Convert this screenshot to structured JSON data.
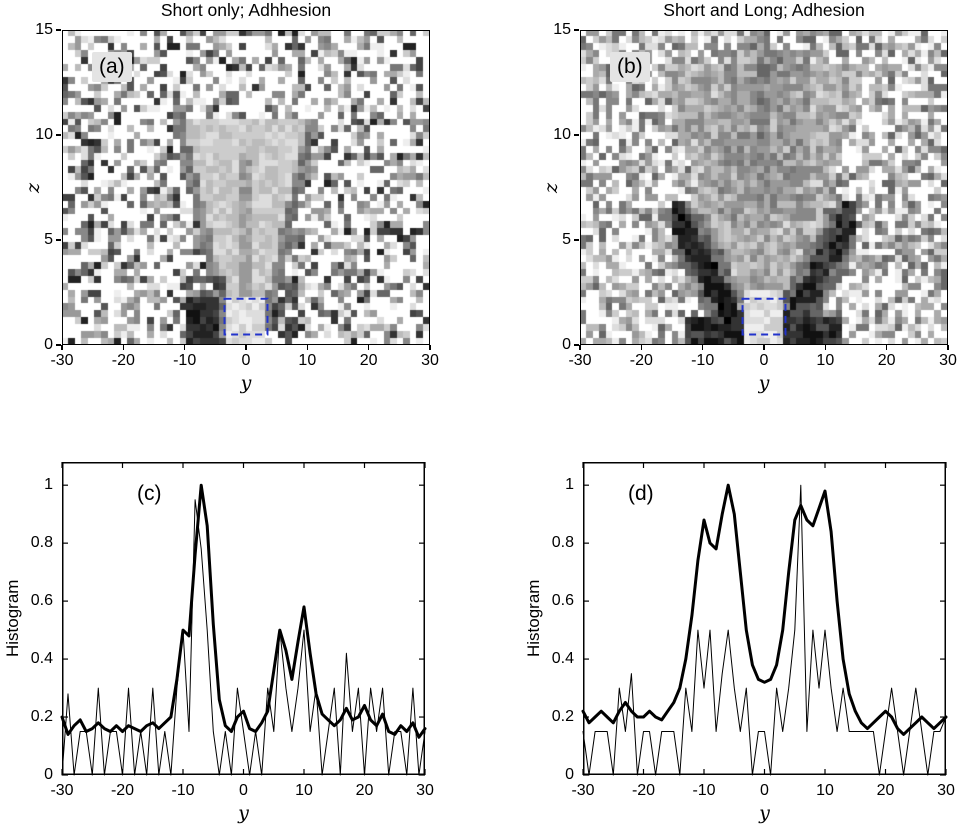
{
  "figure": {
    "background": "#ffffff"
  },
  "colors": {
    "roi_box": "#2233cc",
    "line": "#000000",
    "tag_bg": "#e4e4e4"
  },
  "chart_data": [
    {
      "type": "heatmap",
      "panel_label": "(a)",
      "title": "Short only; Adhhesion",
      "xlabel": "y",
      "ylabel": "z",
      "xlim": [
        -30,
        30
      ],
      "ylim": [
        0,
        15
      ],
      "xticks": [
        -30,
        -20,
        -10,
        0,
        10,
        20,
        30
      ],
      "yticks": [
        0,
        5,
        10,
        15
      ],
      "roi_box": {
        "x": [
          -3.5,
          3.5
        ],
        "z": [
          0.5,
          2.2
        ],
        "style": "dashed",
        "color": "#2233cc"
      },
      "description": "Noisy grayscale density map: light funnel-shaped plume rising from bottom center, very dark patches near y=-9..-4 and y=5..8 at low z, speckled white/gray background",
      "seed": 101
    },
    {
      "type": "heatmap",
      "panel_label": "(b)",
      "title": "Short and Long; Adhesion",
      "xlabel": "y",
      "ylabel": "z",
      "xlim": [
        -30,
        30
      ],
      "ylim": [
        0,
        15
      ],
      "xticks": [
        -30,
        -20,
        -10,
        0,
        10,
        20,
        30
      ],
      "yticks": [
        0,
        5,
        10,
        15
      ],
      "roi_box": {
        "x": [
          -3.5,
          3.5
        ],
        "z": [
          0.5,
          2.2
        ],
        "style": "dashed",
        "color": "#2233cc"
      },
      "description": "Noisy grayscale density map: broad gray cone with bright bottom center, strong dark chevron wings at |y|=4..14 for z<5, faint dark central streak above z=6, speckled background",
      "seed": 202
    },
    {
      "type": "line",
      "panel_label": "(c)",
      "title": "",
      "xlabel": "y",
      "ylabel": "Histogram",
      "xlim": [
        -30,
        30
      ],
      "ylim": [
        0,
        1.08
      ],
      "xticks": [
        -30,
        -20,
        -10,
        0,
        10,
        20,
        30
      ],
      "yticks": [
        0,
        0.2,
        0.4,
        0.6,
        0.8,
        1
      ],
      "x_start": -30,
      "x_step": 1,
      "series": [
        {
          "name": "raw-histogram",
          "stroke_width": 1,
          "values": [
            0.0,
            0.28,
            0.0,
            0.15,
            0.15,
            0.0,
            0.3,
            0.0,
            0.15,
            0.15,
            0.0,
            0.3,
            0.0,
            0.15,
            0.0,
            0.3,
            0.0,
            0.15,
            0.0,
            0.3,
            0.5,
            0.15,
            0.95,
            0.78,
            0.5,
            0.15,
            0.0,
            0.15,
            0.0,
            0.3,
            0.15,
            0.0,
            0.15,
            0.0,
            0.3,
            0.15,
            0.5,
            0.3,
            0.15,
            0.3,
            0.5,
            0.15,
            0.3,
            0.0,
            0.15,
            0.3,
            0.0,
            0.42,
            0.15,
            0.3,
            0.0,
            0.3,
            0.15,
            0.3,
            0.0,
            0.15,
            0.15,
            0.0,
            0.3,
            0.0,
            0.15
          ]
        },
        {
          "name": "smoothed-histogram",
          "stroke_width": 3,
          "values": [
            0.2,
            0.14,
            0.17,
            0.19,
            0.15,
            0.16,
            0.18,
            0.16,
            0.15,
            0.17,
            0.15,
            0.17,
            0.16,
            0.15,
            0.17,
            0.18,
            0.16,
            0.18,
            0.2,
            0.33,
            0.5,
            0.48,
            0.76,
            1.0,
            0.86,
            0.52,
            0.26,
            0.17,
            0.15,
            0.2,
            0.22,
            0.16,
            0.15,
            0.18,
            0.22,
            0.36,
            0.5,
            0.43,
            0.33,
            0.46,
            0.58,
            0.42,
            0.28,
            0.21,
            0.19,
            0.17,
            0.19,
            0.23,
            0.19,
            0.2,
            0.24,
            0.19,
            0.17,
            0.21,
            0.15,
            0.14,
            0.17,
            0.15,
            0.18,
            0.13,
            0.16
          ]
        }
      ]
    },
    {
      "type": "line",
      "panel_label": "(d)",
      "title": "",
      "xlabel": "y",
      "ylabel": "Histogram",
      "xlim": [
        -30,
        30
      ],
      "ylim": [
        0,
        1.08
      ],
      "xticks": [
        -30,
        -20,
        -10,
        0,
        10,
        20,
        30
      ],
      "yticks": [
        0,
        0.2,
        0.4,
        0.6,
        0.8,
        1
      ],
      "x_start": -30,
      "x_step": 1,
      "series": [
        {
          "name": "raw-histogram",
          "stroke_width": 1,
          "values": [
            0.15,
            0.0,
            0.15,
            0.15,
            0.15,
            0.0,
            0.3,
            0.15,
            0.35,
            0.0,
            0.15,
            0.15,
            0.0,
            0.15,
            0.15,
            0.15,
            0.0,
            0.3,
            0.15,
            0.5,
            0.3,
            0.5,
            0.15,
            0.35,
            0.5,
            0.3,
            0.15,
            0.3,
            0.0,
            0.15,
            0.15,
            0.0,
            0.3,
            0.15,
            0.3,
            0.5,
            1.0,
            0.15,
            0.5,
            0.3,
            0.5,
            0.3,
            0.15,
            0.3,
            0.15,
            0.15,
            0.15,
            0.15,
            0.15,
            0.0,
            0.15,
            0.3,
            0.15,
            0.0,
            0.15,
            0.3,
            0.15,
            0.0,
            0.15,
            0.15,
            0.2
          ]
        },
        {
          "name": "smoothed-histogram",
          "stroke_width": 3,
          "values": [
            0.22,
            0.18,
            0.2,
            0.22,
            0.2,
            0.18,
            0.22,
            0.25,
            0.22,
            0.2,
            0.2,
            0.22,
            0.2,
            0.19,
            0.22,
            0.25,
            0.3,
            0.4,
            0.55,
            0.74,
            0.88,
            0.8,
            0.78,
            0.9,
            1.0,
            0.9,
            0.7,
            0.5,
            0.38,
            0.33,
            0.32,
            0.33,
            0.38,
            0.5,
            0.7,
            0.88,
            0.93,
            0.88,
            0.86,
            0.92,
            0.98,
            0.84,
            0.6,
            0.4,
            0.28,
            0.22,
            0.18,
            0.16,
            0.18,
            0.2,
            0.22,
            0.2,
            0.16,
            0.14,
            0.16,
            0.18,
            0.2,
            0.18,
            0.16,
            0.18,
            0.2
          ]
        }
      ]
    }
  ]
}
